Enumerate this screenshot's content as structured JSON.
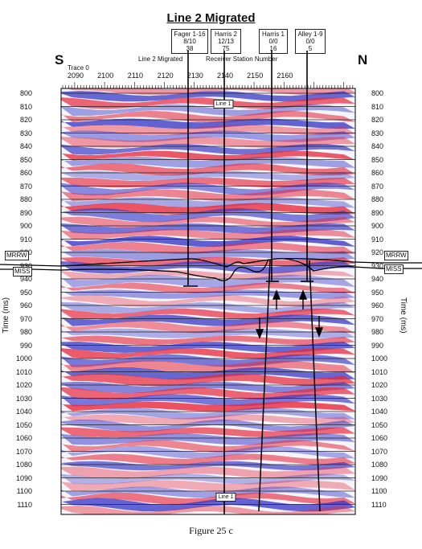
{
  "title": "Line 2 Migrated",
  "wells": [
    {
      "name": "Fager 1-16",
      "line2": "8/10",
      "line3": "38"
    },
    {
      "name": "Harris 2",
      "line2": "12/13",
      "line3": "75"
    },
    {
      "name": "Harris 1",
      "line2": "0/0",
      "line3": "16"
    },
    {
      "name": "Alley 1-9",
      "line2": "0/0",
      "line3": "5"
    }
  ],
  "directions": {
    "south": "S",
    "north": "N"
  },
  "labels": {
    "line2_migrated": "Line 2 Migrated",
    "receiver_station": "Receiver Station Number",
    "trace0": "Trace 0",
    "line1_top": "Line 1",
    "line1_bottom": "Line 1"
  },
  "trace_ticks": [
    "2090",
    "2100",
    "2110",
    "2120",
    "2130",
    "2140",
    "2150",
    "2160"
  ],
  "time_ticks": [
    "800",
    "810",
    "820",
    "830",
    "840",
    "850",
    "860",
    "870",
    "880",
    "890",
    "900",
    "910",
    "920",
    "930",
    "940",
    "950",
    "960",
    "970",
    "980",
    "990",
    "1000",
    "1010",
    "1020",
    "1030",
    "1040",
    "1050",
    "1060",
    "1070",
    "1080",
    "1090",
    "1100",
    "1110"
  ],
  "axis_title": "Time (ms)",
  "formations": {
    "mrrw": "MRRW",
    "miss": "MISS"
  },
  "caption": "Figure 25 c",
  "colors": {
    "red": "#e8283a",
    "blue": "#3a3ac8"
  }
}
